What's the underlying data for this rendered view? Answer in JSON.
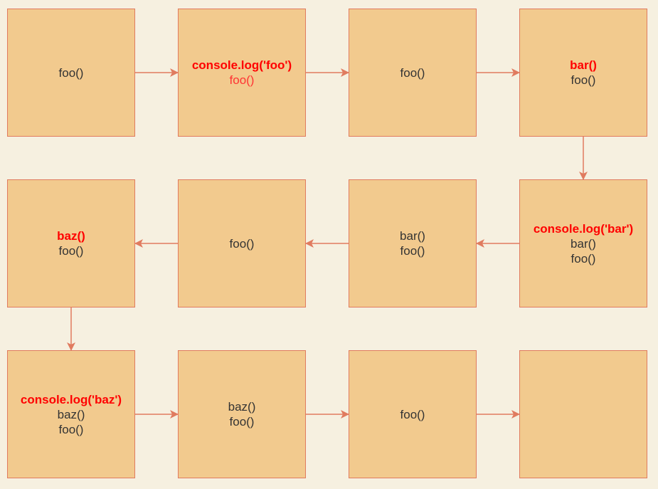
{
  "colors": {
    "background": "#f6f0e0",
    "box_fill": "#f2ca8e",
    "box_border": "#e07b5f",
    "arrow": "#e07b5f",
    "text": "#333333",
    "highlight": "#ff0000",
    "faded_highlight": "#ff3333"
  },
  "boxes": [
    {
      "lines": [
        {
          "text": "foo()",
          "style": "normal"
        }
      ]
    },
    {
      "lines": [
        {
          "text": "console.log('foo')",
          "style": "highlight"
        },
        {
          "text": "foo()",
          "style": "red"
        }
      ]
    },
    {
      "lines": [
        {
          "text": "foo()",
          "style": "normal"
        }
      ]
    },
    {
      "lines": [
        {
          "text": "bar()",
          "style": "highlight"
        },
        {
          "text": "foo()",
          "style": "normal"
        }
      ]
    },
    {
      "lines": [
        {
          "text": "console.log('bar')",
          "style": "highlight"
        },
        {
          "text": "bar()",
          "style": "normal"
        },
        {
          "text": "foo()",
          "style": "normal"
        }
      ]
    },
    {
      "lines": [
        {
          "text": "bar()",
          "style": "normal"
        },
        {
          "text": "foo()",
          "style": "normal"
        }
      ]
    },
    {
      "lines": [
        {
          "text": "foo()",
          "style": "normal"
        }
      ]
    },
    {
      "lines": [
        {
          "text": "baz()",
          "style": "highlight"
        },
        {
          "text": "foo()",
          "style": "normal"
        }
      ]
    },
    {
      "lines": [
        {
          "text": "console.log('baz')",
          "style": "highlight"
        },
        {
          "text": "baz()",
          "style": "normal"
        },
        {
          "text": "foo()",
          "style": "normal"
        }
      ]
    },
    {
      "lines": [
        {
          "text": "baz()",
          "style": "normal"
        },
        {
          "text": "foo()",
          "style": "normal"
        }
      ]
    },
    {
      "lines": [
        {
          "text": "foo()",
          "style": "normal"
        }
      ]
    },
    {
      "lines": []
    }
  ]
}
